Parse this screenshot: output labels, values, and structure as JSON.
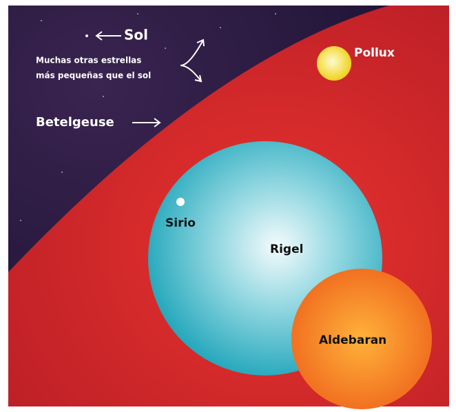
{
  "labels": {
    "sol": "Sol",
    "small_stars_line1": "Muchas otras estrellas",
    "small_stars_line2": "más pequeñas que el sol",
    "betelgeuse": "Betelgeuse",
    "pollux": "Pollux",
    "sirio": "Sirio",
    "rigel": "Rigel",
    "aldebaran": "Aldebaran"
  }
}
